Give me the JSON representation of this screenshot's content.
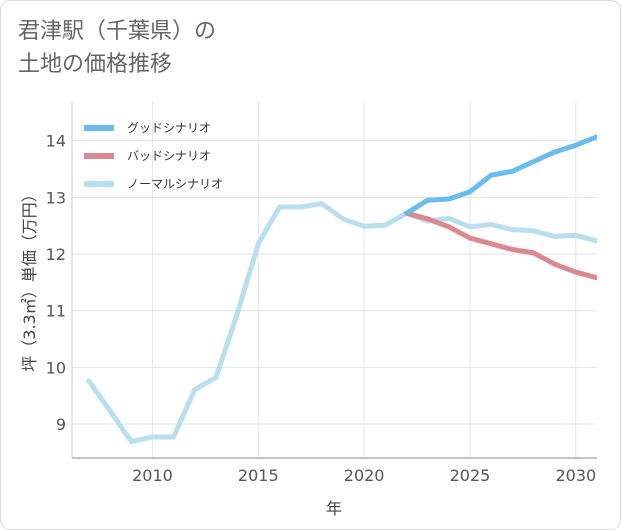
{
  "title": {
    "line1": "君津駅（千葉県）の",
    "line2": "土地の価格推移"
  },
  "chart_data": {
    "type": "line",
    "xlabel": "年",
    "ylabel": "坪（3.3㎡）単価（万円）",
    "xlim": [
      2006.2,
      2031
    ],
    "ylim": [
      8.4,
      14.7
    ],
    "x_ticks": [
      2010,
      2015,
      2020,
      2025,
      2030
    ],
    "y_ticks": [
      9,
      10,
      11,
      12,
      13,
      14
    ],
    "grid": true,
    "legend_position": "top-left",
    "series": [
      {
        "name": "グッドシナリオ",
        "color": "#6bbcee",
        "x": [
          2022,
          2023,
          2024,
          2025,
          2026,
          2027,
          2028,
          2029,
          2030,
          2031
        ],
        "y": [
          12.72,
          12.95,
          12.97,
          13.1,
          13.39,
          13.46,
          13.63,
          13.8,
          13.92,
          14.07
        ]
      },
      {
        "name": "バッドシナリオ",
        "color": "#dc8890",
        "x": [
          2022,
          2023,
          2024,
          2025,
          2026,
          2027,
          2028,
          2029,
          2030,
          2031
        ],
        "y": [
          12.72,
          12.62,
          12.48,
          12.28,
          12.18,
          12.08,
          12.02,
          11.82,
          11.68,
          11.58
        ]
      },
      {
        "name": "ノーマルシナリオ",
        "color": "#b9dfee",
        "x": [
          2007,
          2008,
          2009,
          2010,
          2011,
          2012,
          2013,
          2014,
          2015,
          2016,
          2017,
          2018,
          2019,
          2020,
          2021,
          2022,
          2023,
          2024,
          2025,
          2026,
          2027,
          2028,
          2029,
          2030,
          2031
        ],
        "y": [
          9.76,
          9.23,
          8.69,
          8.77,
          8.77,
          9.61,
          9.82,
          10.94,
          12.18,
          12.83,
          12.83,
          12.89,
          12.62,
          12.49,
          12.51,
          12.72,
          12.58,
          12.63,
          12.48,
          12.52,
          12.43,
          12.41,
          12.31,
          12.33,
          12.23
        ]
      }
    ]
  }
}
